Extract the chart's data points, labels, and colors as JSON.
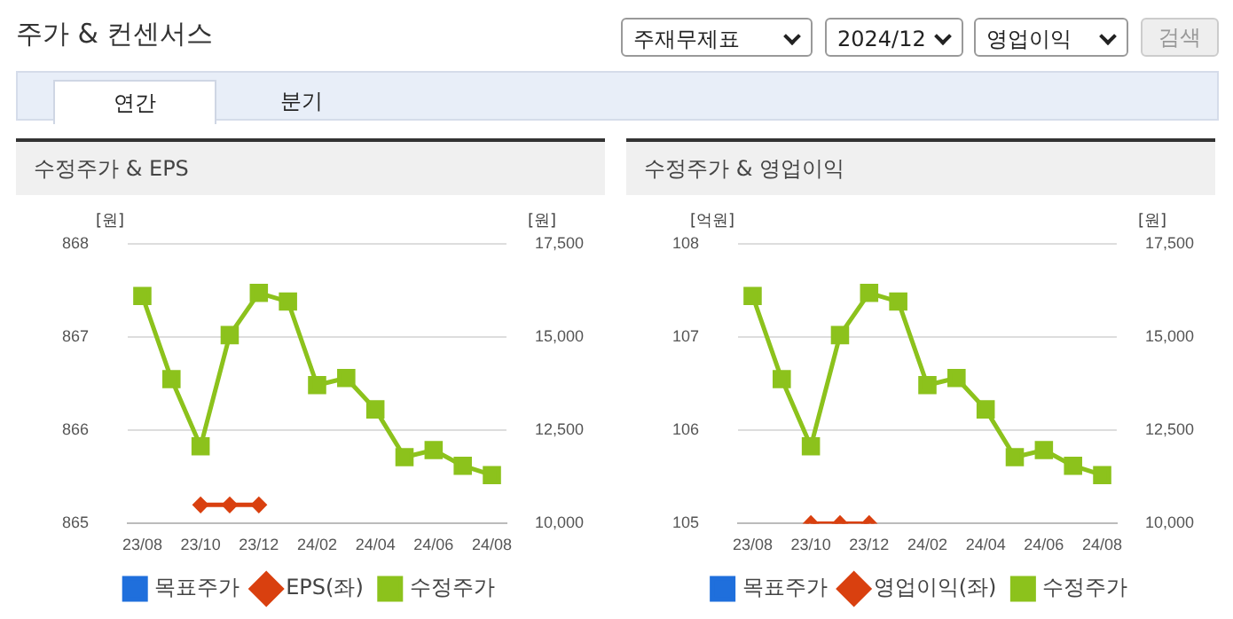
{
  "chart_data": [
    {
      "type": "other",
      "title": "주가 & 컨센서스",
      "annotations": [
        "주재무제표",
        "2024/12",
        "영업이익",
        "검색",
        "연간",
        "분기"
      ]
    },
    {
      "type": "line",
      "title": "수정주가 & EPS",
      "ylabel": "[원]",
      "y2label": "[원]",
      "categories": [
        "23/08",
        null,
        "23/10",
        null,
        "23/12",
        null,
        "24/02",
        null,
        "24/04",
        null,
        "24/06",
        null,
        "24/08"
      ],
      "series": [
        {
          "name": "목표주가",
          "color": "#1f6fdc",
          "marker": "square",
          "values": [
            null,
            null,
            null,
            null,
            null,
            null,
            null,
            null,
            null,
            null,
            null,
            null,
            null
          ]
        },
        {
          "name": "EPS(좌)",
          "color": "#d9400f",
          "marker": "diamond",
          "values": [
            null,
            null,
            865.2,
            865.2,
            865.2,
            null,
            null,
            null,
            null,
            null,
            null,
            null,
            null
          ]
        },
        {
          "name": "수정주가",
          "color": "#8cc21c",
          "marker": "square",
          "axis": "y2",
          "values": [
            16100,
            13870,
            12070,
            15050,
            16180,
            15950,
            13710,
            13900,
            13060,
            11780,
            11970,
            11550,
            11300
          ]
        }
      ],
      "ylim": [
        865,
        868
      ],
      "yticks": [
        865,
        866,
        867,
        868
      ],
      "y2lim": [
        10000,
        17500
      ],
      "y2ticks": [
        {
          "value": 10000,
          "label": "10,000"
        },
        {
          "value": 12500,
          "label": "12,500"
        },
        {
          "value": 15000,
          "label": "15,000"
        },
        {
          "value": 17500,
          "label": "17,500"
        }
      ],
      "grid": "y",
      "legend": "bottom"
    },
    {
      "type": "line",
      "title": "수정주가 & 영업이익",
      "ylabel": "[억원]",
      "y2label": "[원]",
      "categories": [
        "23/08",
        null,
        "23/10",
        null,
        "23/12",
        null,
        "24/02",
        null,
        "24/04",
        null,
        "24/06",
        null,
        "24/08"
      ],
      "series": [
        {
          "name": "목표주가",
          "color": "#1f6fdc",
          "marker": "square",
          "values": [
            null,
            null,
            null,
            null,
            null,
            null,
            null,
            null,
            null,
            null,
            null,
            null,
            null
          ]
        },
        {
          "name": "영업이익(좌)",
          "color": "#d9400f",
          "marker": "diamond",
          "values": [
            null,
            null,
            105,
            105,
            105,
            null,
            null,
            null,
            null,
            null,
            null,
            null,
            null
          ]
        },
        {
          "name": "수정주가",
          "color": "#8cc21c",
          "marker": "square",
          "axis": "y2",
          "values": [
            16100,
            13870,
            12070,
            15050,
            16180,
            15950,
            13710,
            13900,
            13060,
            11780,
            11970,
            11550,
            11300
          ]
        }
      ],
      "ylim": [
        105,
        108
      ],
      "yticks": [
        105,
        106,
        107,
        108
      ],
      "y2lim": [
        10000,
        17500
      ],
      "y2ticks": [
        {
          "value": 10000,
          "label": "10,000"
        },
        {
          "value": 12500,
          "label": "12,500"
        },
        {
          "value": 15000,
          "label": "15,000"
        },
        {
          "value": 17500,
          "label": "17,500"
        }
      ],
      "grid": "y",
      "legend": "bottom"
    }
  ]
}
